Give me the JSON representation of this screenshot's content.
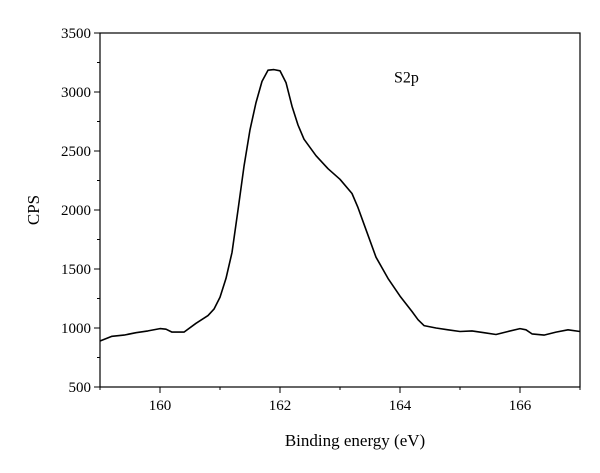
{
  "chart_data": {
    "type": "line",
    "title": "",
    "xlabel": "Binding energy (eV)",
    "ylabel": "CPS",
    "xlim": [
      159,
      167
    ],
    "ylim": [
      500,
      3500
    ],
    "x_ticks": [
      160,
      162,
      164,
      166
    ],
    "y_ticks": [
      500,
      1000,
      1500,
      2000,
      2500,
      3000,
      3500
    ],
    "grid": false,
    "annotations": [
      {
        "text": "S2p",
        "x": 163.9,
        "y": 3080
      }
    ],
    "series": [
      {
        "color": "#000000",
        "x": [
          159.0,
          159.2,
          159.4,
          159.6,
          159.8,
          160.0,
          160.1,
          160.2,
          160.4,
          160.6,
          160.8,
          160.9,
          161.0,
          161.1,
          161.2,
          161.3,
          161.4,
          161.5,
          161.6,
          161.7,
          161.8,
          161.9,
          162.0,
          162.1,
          162.2,
          162.3,
          162.4,
          162.6,
          162.8,
          163.0,
          163.2,
          163.3,
          163.4,
          163.6,
          163.8,
          164.0,
          164.2,
          164.3,
          164.4,
          164.6,
          164.8,
          165.0,
          165.2,
          165.4,
          165.6,
          165.8,
          166.0,
          166.1,
          166.2,
          166.4,
          166.6,
          166.8,
          167.0
        ],
        "y": [
          890,
          930,
          940,
          960,
          975,
          995,
          990,
          965,
          965,
          1040,
          1105,
          1160,
          1260,
          1420,
          1640,
          2000,
          2370,
          2680,
          2910,
          3090,
          3185,
          3190,
          3180,
          3080,
          2880,
          2720,
          2600,
          2460,
          2350,
          2260,
          2140,
          2020,
          1880,
          1600,
          1420,
          1270,
          1140,
          1070,
          1020,
          1000,
          985,
          970,
          975,
          960,
          945,
          970,
          995,
          985,
          950,
          940,
          965,
          985,
          970
        ]
      }
    ]
  }
}
